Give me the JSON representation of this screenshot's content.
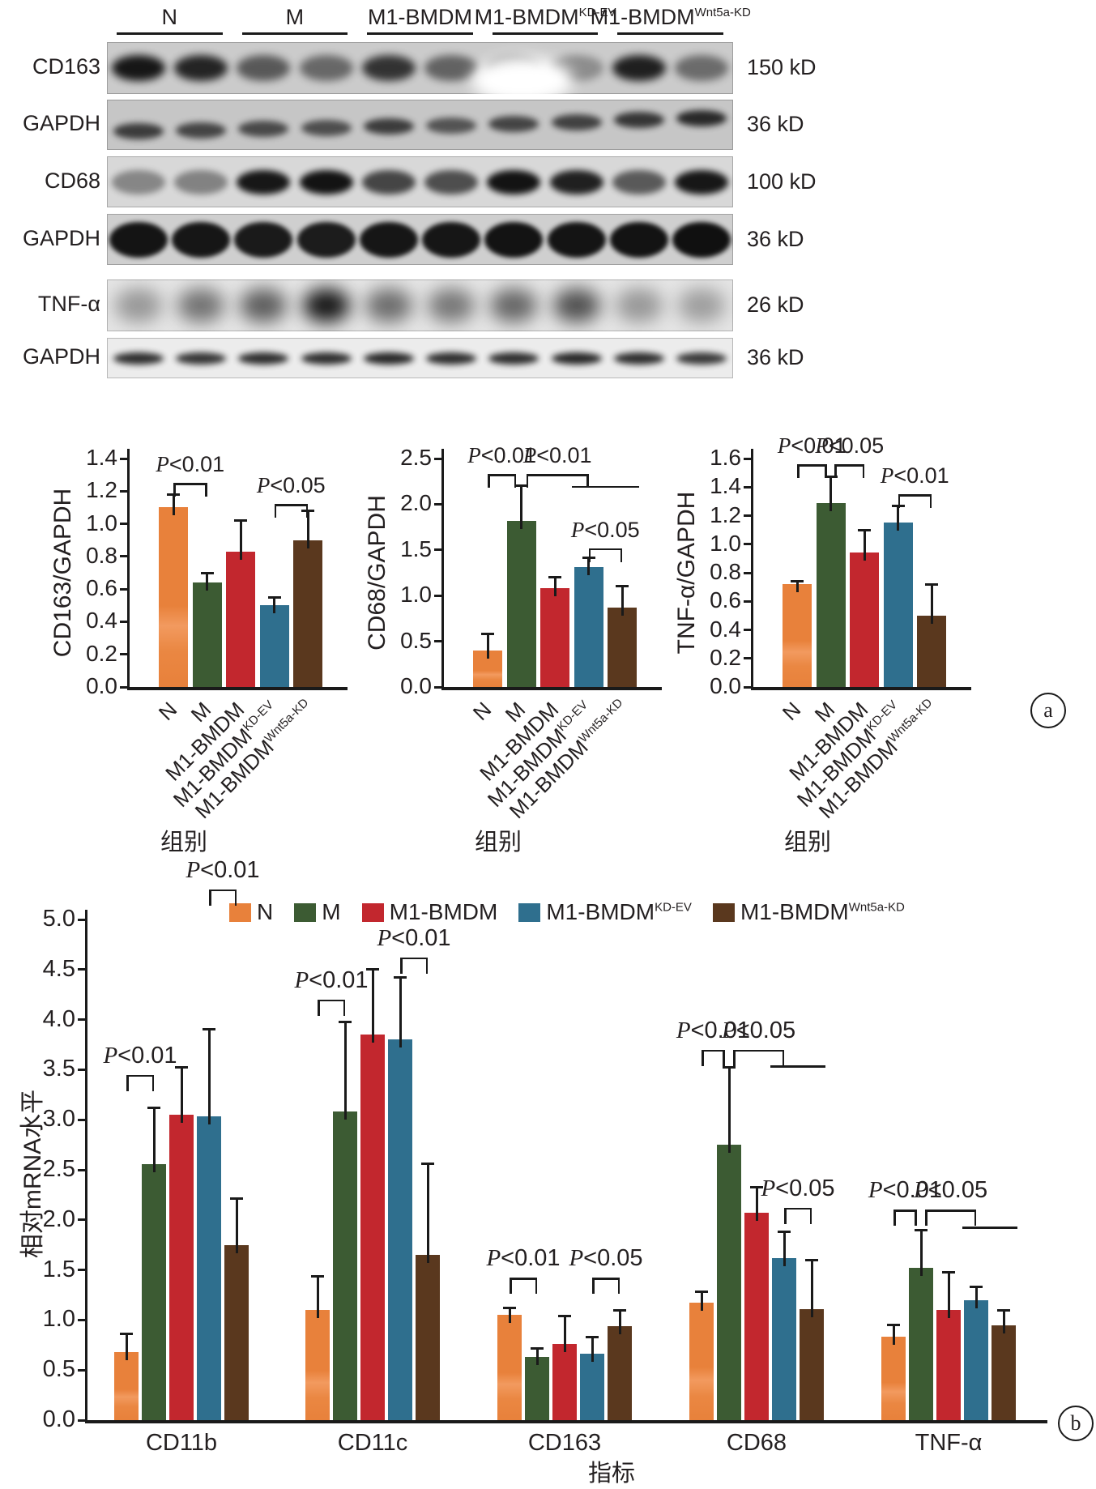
{
  "figure": {
    "panel_markers": {
      "a": "a",
      "b": "b"
    },
    "colors": [
      "#E8813B",
      "#3C5B33",
      "#C2272E",
      "#2F6F8E",
      "#5A381E"
    ],
    "ink_color": "#1a1a1a",
    "group_labels": [
      {
        "base": "N",
        "sup": ""
      },
      {
        "base": "M",
        "sup": ""
      },
      {
        "base": "M1-BMDM",
        "sup": ""
      },
      {
        "base": "M1-BMDM",
        "sup": "KD-EV"
      },
      {
        "base": "M1-BMDM",
        "sup": "Wnt5a-KD"
      }
    ],
    "blots": {
      "lane_count": 10,
      "rows": [
        {
          "label": "CD163",
          "kd": "150 kD",
          "band_intensity": [
            0.95,
            0.88,
            0.6,
            0.52,
            0.8,
            0.55,
            0.3,
            0.32,
            0.9,
            0.5
          ]
        },
        {
          "label": "GAPDH",
          "kd": "36 kD",
          "band_intensity": [
            0.75,
            0.7,
            0.68,
            0.65,
            0.75,
            0.62,
            0.7,
            0.72,
            0.78,
            0.85
          ]
        },
        {
          "label": "CD68",
          "kd": "100 kD",
          "band_intensity": [
            0.4,
            0.42,
            0.95,
            0.97,
            0.72,
            0.68,
            0.97,
            0.9,
            0.62,
            0.95
          ]
        },
        {
          "label": "GAPDH",
          "kd": "36 kD",
          "band_intensity": [
            0.96,
            0.95,
            0.93,
            0.92,
            0.95,
            0.95,
            0.97,
            0.96,
            0.97,
            0.98
          ]
        },
        {
          "label": "TNF-α",
          "kd": "26 kD",
          "band_intensity": [
            0.35,
            0.52,
            0.62,
            0.95,
            0.55,
            0.5,
            0.58,
            0.68,
            0.35,
            0.32
          ]
        },
        {
          "label": "GAPDH",
          "kd": "36 kD",
          "band_intensity": [
            0.85,
            0.82,
            0.85,
            0.85,
            0.88,
            0.85,
            0.85,
            0.88,
            0.85,
            0.8
          ]
        }
      ]
    }
  },
  "chart_data": [
    {
      "type": "bar",
      "ylabel": "CD163/GAPDH",
      "xlabel": "组别",
      "categories": [
        "N",
        "M",
        "M1-BMDM",
        "M1-BMDM^KD-EV",
        "M1-BMDM^Wnt5a-KD"
      ],
      "values": [
        1.1,
        0.64,
        0.83,
        0.5,
        0.9
      ],
      "errors": [
        0.08,
        0.06,
        0.19,
        0.05,
        0.18
      ],
      "ylim": [
        0,
        1.4
      ],
      "ystep": 0.2,
      "annotations": [
        {
          "label": "P<0.01",
          "from": 0,
          "to": 1,
          "y": 1.25
        },
        {
          "label": "P<0.05",
          "from": 3,
          "to": 4,
          "y": 1.12
        }
      ]
    },
    {
      "type": "bar",
      "ylabel": "CD68/GAPDH",
      "xlabel": "组别",
      "categories": [
        "N",
        "M",
        "M1-BMDM",
        "M1-BMDM^KD-EV",
        "M1-BMDM^Wnt5a-KD"
      ],
      "values": [
        0.4,
        1.82,
        1.08,
        1.31,
        0.87
      ],
      "errors": [
        0.18,
        0.38,
        0.12,
        0.1,
        0.23
      ],
      "ylim": [
        0,
        2.5
      ],
      "ystep": 0.5,
      "annotations": [
        {
          "label": "P<0.01",
          "from": 0,
          "to": 0.85,
          "y": 2.33
        },
        {
          "label": "P<0.01",
          "from": 1.15,
          "to": 3,
          "y": 2.33,
          "underline": [
            2.5,
            4.5,
            2.2
          ]
        },
        {
          "label": "P<0.05",
          "from": 3,
          "to": 4,
          "y": 1.52
        }
      ]
    },
    {
      "type": "bar",
      "ylabel": "TNF-α/GAPDH",
      "xlabel": "组别",
      "categories": [
        "N",
        "M",
        "M1-BMDM",
        "M1-BMDM^KD-EV",
        "M1-BMDM^Wnt5a-KD"
      ],
      "values": [
        0.72,
        1.29,
        0.94,
        1.15,
        0.5
      ],
      "errors": [
        0.02,
        0.18,
        0.16,
        0.12,
        0.22
      ],
      "ylim": [
        0,
        1.6
      ],
      "ystep": 0.2,
      "annotations": [
        {
          "label": "P<0.01",
          "from": 0,
          "to": 0.88,
          "y": 1.56
        },
        {
          "label": "P<0.05",
          "from": 1.12,
          "to": 2,
          "y": 1.56
        },
        {
          "label": "P<0.01",
          "from": 3,
          "to": 4,
          "y": 1.35
        }
      ]
    },
    {
      "type": "bar",
      "ylabel": "相对mRNA水平",
      "xlabel": "指标",
      "categories": [
        "CD11b",
        "CD11c",
        "CD163",
        "CD68",
        "TNF-α"
      ],
      "series": [
        {
          "name": "N",
          "values": [
            0.68,
            1.1,
            1.05,
            1.17,
            0.83
          ],
          "errors": [
            0.18,
            0.34,
            0.07,
            0.11,
            0.12
          ],
          "color": "#E8813B"
        },
        {
          "name": "M",
          "values": [
            2.56,
            3.08,
            0.63,
            2.75,
            1.52
          ],
          "errors": [
            0.56,
            0.9,
            0.09,
            0.77,
            0.38
          ],
          "color": "#3C5B33"
        },
        {
          "name": "M1-BMDM",
          "values": [
            3.05,
            3.85,
            0.76,
            2.07,
            1.1
          ],
          "errors": [
            0.47,
            0.65,
            0.28,
            0.26,
            0.38
          ],
          "color": "#C2272E"
        },
        {
          "name": "M1-BMDM^KD-EV",
          "values": [
            3.03,
            3.8,
            0.66,
            1.62,
            1.2
          ],
          "errors": [
            0.87,
            0.62,
            0.17,
            0.26,
            0.13
          ],
          "color": "#2F6F8E"
        },
        {
          "name": "M1-BMDM^Wnt5a-KD",
          "values": [
            1.75,
            1.65,
            0.94,
            1.11,
            0.95
          ],
          "errors": [
            0.46,
            0.91,
            0.16,
            0.49,
            0.15
          ],
          "color": "#5A381E"
        }
      ],
      "ylim": [
        0,
        5.0
      ],
      "ystep": 0.5,
      "legend_position": "top",
      "annotations": [
        {
          "label": "P<0.01",
          "group": 0,
          "from": 0,
          "to": 1,
          "y": 3.45
        },
        {
          "label": "P<0.01",
          "group": 0,
          "from": 3,
          "to": 4,
          "y": 5.3
        },
        {
          "label": "P<0.01",
          "group": 1,
          "from": 0,
          "to": 1,
          "y": 4.2
        },
        {
          "label": "P<0.01",
          "group": 1,
          "from": 3,
          "to": 4,
          "y": 4.62
        },
        {
          "label": "P<0.01",
          "group": 2,
          "from": 0,
          "to": 1,
          "y": 1.42
        },
        {
          "label": "P<0.05",
          "group": 2,
          "from": 3,
          "to": 4,
          "y": 1.42
        },
        {
          "label": "P<0.01",
          "group": 3,
          "from": 0,
          "to": 0.85,
          "y": 3.7
        },
        {
          "label": "P<0.05",
          "group": 3,
          "from": 1.15,
          "to": 3,
          "y": 3.7,
          "underline": [
            2.5,
            4.5,
            3.54
          ]
        },
        {
          "label": "P<0.05",
          "group": 3,
          "from": 3,
          "to": 4,
          "y": 2.12
        },
        {
          "label": "P<0.01",
          "group": 4,
          "from": 0,
          "to": 0.85,
          "y": 2.1
        },
        {
          "label": "P<0.05",
          "group": 4,
          "from": 1.15,
          "to": 3,
          "y": 2.1,
          "underline": [
            2.5,
            4.5,
            1.93
          ]
        }
      ]
    }
  ]
}
